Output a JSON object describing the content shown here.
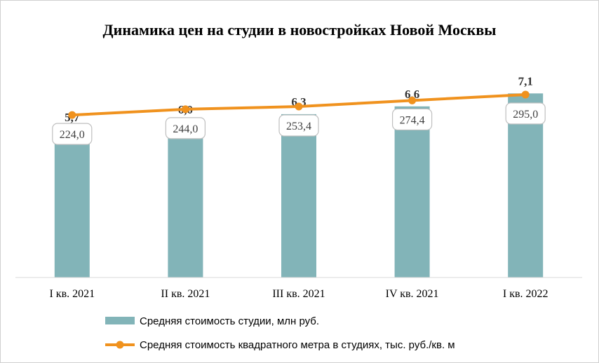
{
  "chart_data": {
    "type": "bar",
    "title": "Динамика цен на студии в новостройках Новой Москвы",
    "categories": [
      "I кв. 2021",
      "II кв. 2021",
      "III кв. 2021",
      "IV кв. 2021",
      "I кв. 2022"
    ],
    "series": [
      {
        "name": "Средняя стоимость студии, млн руб.",
        "type": "bar",
        "axis": "primary",
        "values": [
          5.7,
          6.0,
          6.3,
          6.6,
          7.1
        ],
        "labels": [
          "5,7",
          "6,0",
          "6,3",
          "6,6",
          "7,1"
        ],
        "color": "#82b4b8"
      },
      {
        "name": "Средняя стоимость квадратного метра в студиях, тыс. руб./кв. м",
        "type": "line",
        "axis": "secondary",
        "values": [
          224.0,
          244.0,
          253.4,
          274.4,
          295.0
        ],
        "labels": [
          "224,0",
          "244,0",
          "253,4",
          "274,4",
          "295,0"
        ],
        "color": "#f0921e"
      }
    ],
    "ylim_primary": [
      0,
      8
    ],
    "ylim_secondary": [
      -340,
      380
    ],
    "grid": false,
    "legend_position": "bottom"
  }
}
